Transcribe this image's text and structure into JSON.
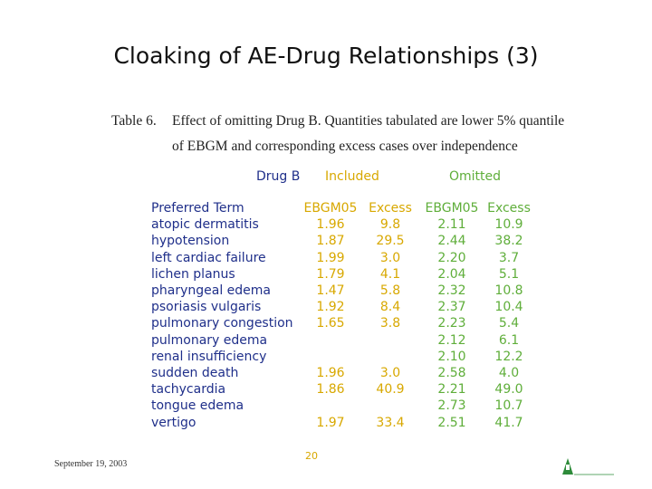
{
  "title": "Cloaking of AE-Drug Relationships (3)",
  "caption": {
    "label": "Table 6.",
    "line1": "Effect of omitting Drug B.  Quantities tabulated are lower 5% quantile",
    "line2": "of EBGM and corresponding excess cases over independence"
  },
  "groups": {
    "drug": "Drug B",
    "included": "Included",
    "omitted": "Omitted"
  },
  "colors": {
    "term": "#1f2f8a",
    "included": "#d8a800",
    "omitted": "#5fae3a"
  },
  "table": {
    "headers": [
      "Preferred Term",
      "EBGM05",
      "Excess",
      "EBGM05",
      "Excess"
    ],
    "rows": [
      [
        "atopic dermatitis",
        "1.96",
        "9.8",
        "2.11",
        "10.9"
      ],
      [
        "hypotension",
        "1.87",
        "29.5",
        "2.44",
        "38.2"
      ],
      [
        "left cardiac failure",
        "1.99",
        "3.0",
        "2.20",
        "3.7"
      ],
      [
        "lichen planus",
        "1.79",
        "4.1",
        "2.04",
        "5.1"
      ],
      [
        "pharyngeal edema",
        "1.47",
        "5.8",
        "2.32",
        "10.8"
      ],
      [
        "psoriasis vulgaris",
        "1.92",
        "8.4",
        "2.37",
        "10.4"
      ],
      [
        "pulmonary congestion",
        "1.65",
        "3.8",
        "2.23",
        "5.4"
      ],
      [
        "pulmonary edema",
        "",
        "",
        "2.12",
        "6.1"
      ],
      [
        "renal insufficiency",
        "",
        "",
        "2.10",
        "12.2"
      ],
      [
        "sudden death",
        "1.96",
        "3.0",
        "2.58",
        "4.0"
      ],
      [
        "tachycardia",
        "1.86",
        "40.9",
        "2.21",
        "49.0"
      ],
      [
        "tongue edema",
        "",
        "",
        "2.73",
        "10.7"
      ],
      [
        "vertigo",
        "1.97",
        "33.4",
        "2.51",
        "41.7"
      ]
    ]
  },
  "footer": {
    "date": "September 19, 2003",
    "page": "20"
  }
}
